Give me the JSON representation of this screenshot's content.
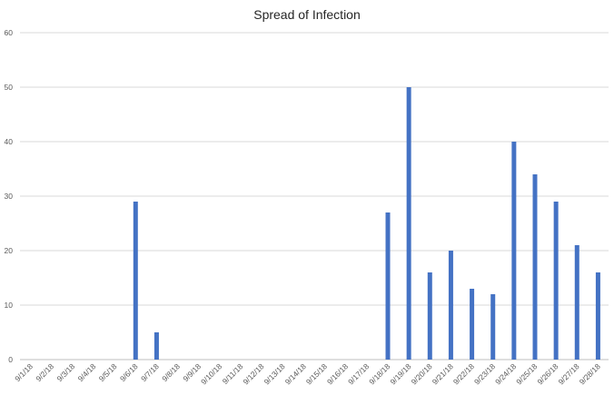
{
  "chart_data": {
    "type": "bar",
    "title": "Spread of Infection",
    "xlabel": "",
    "ylabel": "",
    "ylim": [
      0,
      60
    ],
    "yticks": [
      "0",
      "10",
      "20",
      "30",
      "40",
      "50",
      "60"
    ],
    "grid": true,
    "legend": "none",
    "bar_color": "#4472c4",
    "categories": [
      "9/1/18",
      "9/2/18",
      "9/3/18",
      "9/4/18",
      "9/5/18",
      "9/6/18",
      "9/7/18",
      "9/8/18",
      "9/9/18",
      "9/10/18",
      "9/11/18",
      "9/12/18",
      "9/13/18",
      "9/14/18",
      "9/15/18",
      "9/16/18",
      "9/17/18",
      "9/18/18",
      "9/19/18",
      "9/20/18",
      "9/21/18",
      "9/22/18",
      "9/23/18",
      "9/24/18",
      "9/25/18",
      "9/26/18",
      "9/27/18",
      "9/28/18"
    ],
    "values": [
      0,
      0,
      0,
      0,
      0,
      29,
      5,
      0,
      0,
      0,
      0,
      0,
      0,
      0,
      0,
      0,
      0,
      27,
      50,
      16,
      20,
      13,
      12,
      40,
      34,
      29,
      21,
      16
    ]
  }
}
